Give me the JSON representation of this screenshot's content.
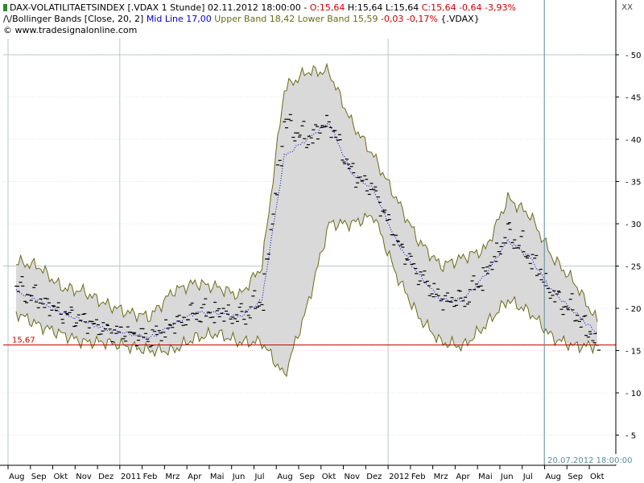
{
  "header": {
    "line1": {
      "name": "DAX-VOLATILITAETSINDEX [.VDAX  1 Stunde] 02.11.2012 18:00:00 - ",
      "open": "O:15,64",
      "hl": " H:15,64 L:15,64 ",
      "close": "C:15,64 -0,64 -3,93%"
    },
    "line2": {
      "prefix": "Bollinger Bands [Close, 20, 2]",
      "mid": "Mid Line 17,00",
      "bands": "Upper Band 18,42 Lower Band 15,59",
      "change": "-0,03 -0,17%",
      "suffix": "{.VDAX}"
    },
    "line3": "© www.tradesignalonline.com",
    "close_button": "XX"
  },
  "colors": {
    "price": "#000000",
    "band_fill": "#d9d9d9",
    "band_line": "#6b6b1a",
    "mid_line": "#0000cc",
    "hline": "#cc0000",
    "grid": "#b8c8c8",
    "crosshair": "#5a8a9a"
  },
  "chart_data": {
    "type": "line",
    "title": "DAX-VOLATILITAETSINDEX [.VDAX  1 Stunde]",
    "ylim": [
      0,
      53
    ],
    "y_ticks": [
      5,
      10,
      15,
      20,
      25,
      30,
      35,
      40,
      45,
      50
    ],
    "x_labels": [
      "Aug",
      "Sep",
      "Okt",
      "Nov",
      "Dez",
      "2011",
      "Feb",
      "Mrz",
      "Apr",
      "Mai",
      "Jun",
      "Jul",
      "Aug",
      "Sep",
      "Okt",
      "Nov",
      "Dez",
      "2012",
      "Feb",
      "Mrz",
      "Apr",
      "Mai",
      "Jun",
      "Jul",
      "Aug",
      "Sep",
      "Okt"
    ],
    "x": [
      "2010-08",
      "2010-09",
      "2010-10",
      "2010-11",
      "2010-12",
      "2011-01",
      "2011-02",
      "2011-03",
      "2011-04",
      "2011-05",
      "2011-06",
      "2011-07",
      "2011-08",
      "2011-09",
      "2011-10",
      "2011-11",
      "2011-12",
      "2012-01",
      "2012-02",
      "2012-03",
      "2012-04",
      "2012-05",
      "2012-06",
      "2012-07",
      "2012-08",
      "2012-09",
      "2012-10"
    ],
    "series": [
      {
        "name": "Upper Band",
        "values": [
          25.5,
          25.0,
          22.5,
          22.0,
          20.5,
          19.5,
          19.0,
          22.0,
          23.0,
          22.5,
          21.5,
          25.0,
          46.0,
          48.0,
          48.0,
          42.0,
          38.0,
          33.0,
          28.0,
          25.0,
          26.0,
          27.0,
          33.0,
          31.0,
          26.0,
          23.0,
          18.4
        ]
      },
      {
        "name": "Mid Line",
        "values": [
          22.0,
          21.0,
          19.5,
          18.5,
          17.5,
          17.0,
          16.5,
          18.0,
          19.5,
          19.5,
          19.0,
          21.0,
          38.0,
          40.0,
          42.0,
          36.0,
          34.0,
          28.0,
          24.0,
          21.0,
          21.0,
          24.0,
          28.0,
          26.0,
          22.0,
          19.5,
          17.0
        ]
      },
      {
        "name": "Lower Band",
        "values": [
          19.5,
          18.0,
          17.0,
          16.0,
          16.0,
          15.5,
          15.0,
          15.0,
          16.5,
          17.0,
          16.0,
          16.0,
          12.0,
          20.0,
          30.0,
          30.0,
          31.0,
          24.0,
          19.0,
          16.0,
          15.5,
          18.0,
          21.0,
          19.5,
          16.5,
          15.5,
          15.59
        ]
      },
      {
        "name": "Close",
        "values": [
          22.5,
          21.0,
          19.5,
          18.5,
          17.5,
          17.0,
          16.5,
          18.0,
          19.5,
          19.5,
          19.0,
          21.0,
          42.0,
          40.0,
          42.0,
          36.0,
          34.0,
          28.0,
          24.0,
          21.0,
          21.0,
          24.0,
          29.0,
          26.0,
          21.5,
          19.5,
          15.64
        ]
      }
    ],
    "hline": {
      "value": 15.67,
      "label": "15,67"
    },
    "crosshair_label": "20.07.2012 18:00:00",
    "grid": true
  }
}
